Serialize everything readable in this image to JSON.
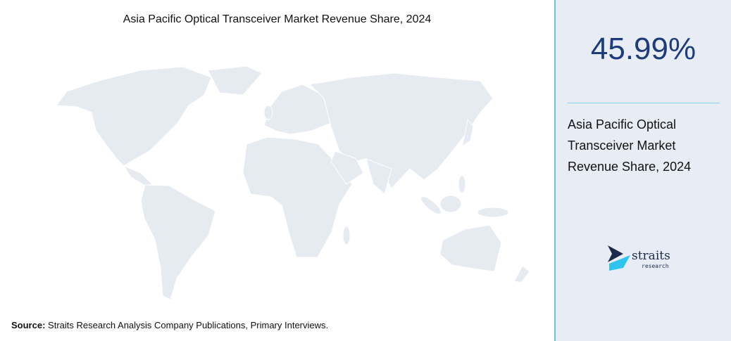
{
  "title": "Asia Pacific Optical Transceiver Market Revenue Share, 2024",
  "source": {
    "label": "Source:",
    "text": "Straits Research Analysis Company Publications, Primary Interviews."
  },
  "stat": {
    "value": "45.99%",
    "lines": [
      "Asia Pacific Optical",
      "Transceiver Market",
      "Revenue Share, 2024"
    ]
  },
  "logo": {
    "name": "straits",
    "tagline": "research"
  }
}
